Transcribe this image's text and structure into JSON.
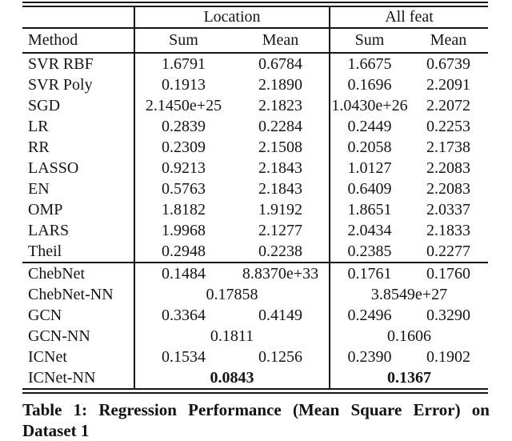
{
  "table": {
    "group_headers": [
      "Location",
      "All feat"
    ],
    "method_header": "Method",
    "sub_headers": [
      "Sum",
      "Mean",
      "Sum",
      "Mean"
    ],
    "rows": [
      {
        "method": "SVR RBF",
        "cells": [
          "1.6791",
          "0.6784",
          "1.6675",
          "0.6739"
        ]
      },
      {
        "method": "SVR Poly",
        "cells": [
          "0.1913",
          "2.1890",
          "0.1696",
          "2.2091"
        ]
      },
      {
        "method": "SGD",
        "cells": [
          "2.1450e+25",
          "2.1823",
          "1.0430e+26",
          "2.2072"
        ]
      },
      {
        "method": "LR",
        "cells": [
          "0.2839",
          "0.2284",
          "0.2449",
          "0.2253"
        ]
      },
      {
        "method": "RR",
        "cells": [
          "0.2309",
          "2.1508",
          "0.2058",
          "2.1738"
        ]
      },
      {
        "method": "LASSO",
        "cells": [
          "0.9213",
          "2.1843",
          "1.0127",
          "2.2083"
        ]
      },
      {
        "method": "EN",
        "cells": [
          "0.5763",
          "2.1843",
          "0.6409",
          "2.2083"
        ]
      },
      {
        "method": "OMP",
        "cells": [
          "1.8182",
          "1.9192",
          "1.8651",
          "2.0337"
        ]
      },
      {
        "method": "LARS",
        "cells": [
          "1.9968",
          "2.1277",
          "2.0434",
          "2.1833"
        ]
      },
      {
        "method": "Theil",
        "cells": [
          "0.2948",
          "0.2238",
          "0.2385",
          "0.2277"
        ]
      }
    ],
    "rows2": [
      {
        "method": "ChebNet",
        "cells": [
          "0.1484",
          "8.8370e+33",
          "0.1761",
          "0.1760"
        ]
      },
      {
        "method": "ChebNet-NN",
        "span_cells": [
          "0.17858",
          "3.8549e+27"
        ]
      },
      {
        "method": "GCN",
        "cells": [
          "0.3364",
          "0.4149",
          "0.2496",
          "0.3290"
        ]
      },
      {
        "method": "GCN-NN",
        "span_cells": [
          "0.1811",
          "0.1606"
        ]
      },
      {
        "method": "ICNet",
        "cells": [
          "0.1534",
          "0.1256",
          "0.2390",
          "0.1902"
        ]
      },
      {
        "method": "ICNet-NN",
        "span_cells": [
          "0.0843",
          "0.1367"
        ],
        "bold": true
      }
    ]
  },
  "caption": {
    "line1": "Table 1: Regression Performance (Mean Square Error) on",
    "line2": "Dataset 1"
  }
}
